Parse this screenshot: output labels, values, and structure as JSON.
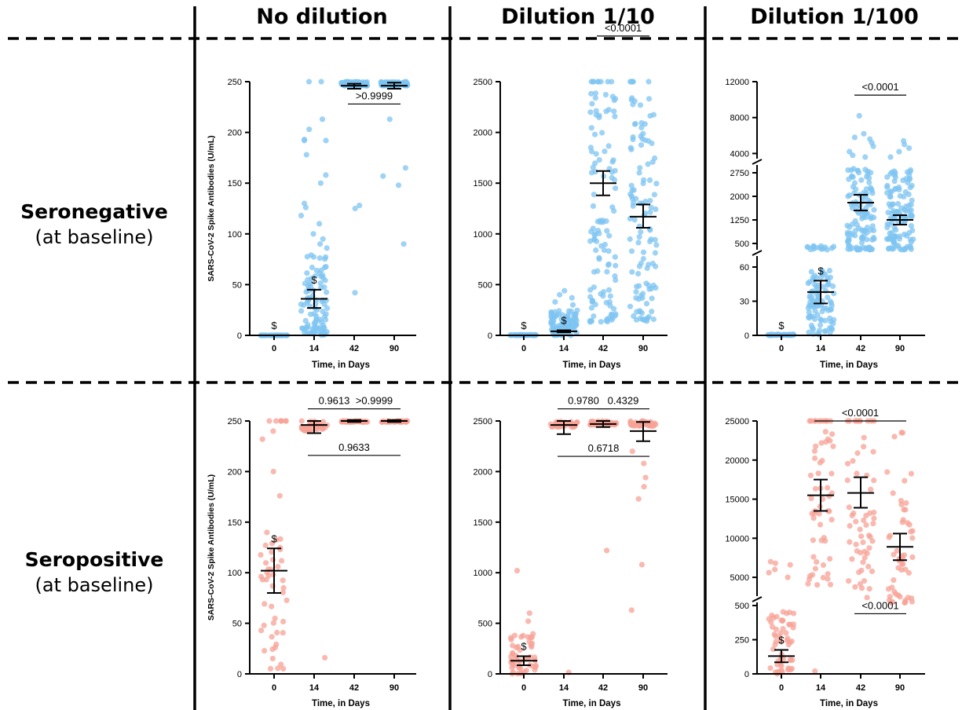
{
  "columns": [
    "No dilution",
    "Dilution 1/10",
    "Dilution 1/100"
  ],
  "rows": [
    {
      "main": "Seronegative",
      "sub": "(at baseline)"
    },
    {
      "main": "Seropositive",
      "sub": "(at baseline)"
    }
  ],
  "colors": {
    "seronegative": "#7ec4f2",
    "seropositive": "#f7a296",
    "line": "#000000"
  },
  "chart_data": [
    {
      "type": "scatter",
      "title": "No dilution",
      "group": "Seronegative",
      "xlabel": "Time, in Days",
      "ylabel": "SARS-CoV-2 Spike Antibodies (U/mL)",
      "categories": [
        "0",
        "14",
        "42",
        "90"
      ],
      "ylim": [
        0,
        250
      ],
      "yticks": [
        0,
        50,
        100,
        150,
        200,
        250
      ],
      "groups": [
        {
          "x": "0",
          "mean": 0,
          "err": [
            0,
            0
          ],
          "n": 40,
          "spread": [
            0,
            0
          ],
          "extra": [],
          "annotation": "$"
        },
        {
          "x": "14",
          "mean": 36,
          "err": [
            27,
            45
          ],
          "n": 100,
          "spread": [
            0,
            82
          ],
          "extra": [
            250,
            250,
            213,
            203,
            193,
            192,
            192,
            178,
            158,
            150,
            130,
            126,
            118,
            110,
            100,
            95,
            90,
            86
          ],
          "annotation": "$"
        },
        {
          "x": "42",
          "mean": 246,
          "err": [
            243,
            248
          ],
          "n": 95,
          "spread": [
            246,
            250
          ],
          "extra": [
            125,
            128,
            42
          ]
        },
        {
          "x": "90",
          "mean": 246,
          "err": [
            243,
            249
          ],
          "n": 95,
          "spread": [
            246,
            250
          ],
          "extra": [
            213,
            165,
            157,
            148,
            90
          ]
        }
      ],
      "comparisons": [
        {
          "from": "42",
          "to": "90",
          "y": 228,
          "label": ">0.9999"
        }
      ]
    },
    {
      "type": "scatter",
      "title": "Dilution 1/10",
      "group": "Seronegative",
      "xlabel": "Time, in Days",
      "ylabel": "",
      "categories": [
        "0",
        "14",
        "42",
        "90"
      ],
      "ylim": [
        0,
        2500
      ],
      "yticks": [
        0,
        500,
        1000,
        1500,
        2000,
        2500
      ],
      "groups": [
        {
          "x": "0",
          "mean": 0,
          "err": [
            0,
            0
          ],
          "n": 40,
          "spread": [
            0,
            5
          ],
          "extra": [],
          "annotation": "$"
        },
        {
          "x": "14",
          "mean": 40,
          "err": [
            30,
            50
          ],
          "n": 100,
          "spread": [
            0,
            250
          ],
          "extra": [
            440,
            400,
            370,
            330,
            300
          ],
          "annotation": "$"
        },
        {
          "x": "42",
          "mean": 1500,
          "err": [
            1380,
            1620
          ],
          "n": 110,
          "spread": [
            130,
            2400
          ],
          "extra": [
            2500,
            2500,
            2500,
            2500,
            2500,
            2500,
            2500,
            2500
          ]
        },
        {
          "x": "90",
          "mean": 1170,
          "err": [
            1060,
            1290
          ],
          "n": 110,
          "spread": [
            140,
            2350
          ],
          "extra": [
            2500,
            2500,
            2500,
            2500,
            2500,
            2500
          ]
        }
      ],
      "comparisons": [
        {
          "from": "42",
          "to": "90",
          "y": 2950,
          "label": "<0.0001"
        }
      ]
    },
    {
      "type": "scatter",
      "title": "Dilution 1/100",
      "group": "Seronegative",
      "xlabel": "Time, in Days",
      "ylabel": "",
      "y_axis_broken": true,
      "categories": [
        "0",
        "14",
        "42",
        "90"
      ],
      "yticks": [
        0,
        30,
        60,
        500,
        1250,
        2000,
        2750,
        4000,
        8000,
        12000
      ],
      "groups": [
        {
          "x": "0",
          "mean": 0,
          "err": [
            0,
            0
          ],
          "n": 40,
          "spread": [
            0,
            1
          ],
          "extra": [],
          "annotation": "$"
        },
        {
          "x": "14",
          "mean": 38,
          "err": [
            28,
            48
          ],
          "n": 90,
          "spread": [
            0,
            58
          ],
          "extra": [
            420,
            400,
            400,
            390,
            380,
            370,
            360,
            350,
            340,
            330,
            320,
            310,
            300,
            420,
            380
          ],
          "annotation": "$"
        },
        {
          "x": "42",
          "mean": 1800,
          "err": [
            1550,
            2050
          ],
          "n": 120,
          "spread": [
            300,
            3000
          ],
          "extra": [
            8200,
            6200,
            5800,
            5600,
            5200,
            4800,
            4200,
            3800,
            3600
          ]
        },
        {
          "x": "90",
          "mean": 1250,
          "err": [
            1100,
            1400
          ],
          "n": 120,
          "spread": [
            300,
            2900
          ],
          "extra": [
            5400,
            5000,
            4600,
            4200,
            3600
          ]
        }
      ],
      "comparisons": [
        {
          "from": "42",
          "to": "90",
          "y": 10500,
          "label": "<0.0001"
        }
      ]
    },
    {
      "type": "scatter",
      "title": "No dilution",
      "group": "Seropositive",
      "xlabel": "Time, in Days",
      "ylabel": "SARS-CoV-2 Spike Antibodies (U/mL)",
      "categories": [
        "0",
        "14",
        "42",
        "90"
      ],
      "ylim": [
        0,
        250
      ],
      "yticks": [
        0,
        50,
        100,
        150,
        200,
        250
      ],
      "groups": [
        {
          "x": "0",
          "mean": 102,
          "err": [
            80,
            124
          ],
          "n": 45,
          "spread": [
            5,
            145
          ],
          "extra": [
            250,
            250,
            250,
            250,
            250,
            250,
            250,
            240,
            232,
            200,
            176
          ],
          "annotation": "$"
        },
        {
          "x": "14",
          "mean": 246,
          "err": [
            238,
            250
          ],
          "n": 40,
          "spread": [
            240,
            250
          ],
          "extra": [
            16
          ]
        },
        {
          "x": "42",
          "mean": 250,
          "err": [
            249,
            251
          ],
          "n": 45,
          "spread": [
            249,
            250
          ],
          "extra": []
        },
        {
          "x": "90",
          "mean": 250,
          "err": [
            249,
            251
          ],
          "n": 45,
          "spread": [
            249,
            250
          ],
          "extra": []
        }
      ],
      "comparisons": [
        {
          "from": "14",
          "to": "42",
          "y": 262,
          "label": "0.9613"
        },
        {
          "from": "42",
          "to": "90",
          "y": 262,
          "label": ">0.9999"
        },
        {
          "from": "14",
          "to": "90",
          "y": 216,
          "label": "0.9633"
        }
      ]
    },
    {
      "type": "scatter",
      "title": "Dilution 1/10",
      "group": "Seropositive",
      "xlabel": "Time, in Days",
      "ylabel": "",
      "categories": [
        "0",
        "14",
        "42",
        "90"
      ],
      "ylim": [
        0,
        2500
      ],
      "yticks": [
        0,
        500,
        1000,
        1500,
        2000,
        2500
      ],
      "groups": [
        {
          "x": "0",
          "mean": 130,
          "err": [
            85,
            175
          ],
          "n": 50,
          "spread": [
            0,
            400
          ],
          "extra": [
            1020,
            600,
            520
          ],
          "annotation": "$"
        },
        {
          "x": "14",
          "mean": 2460,
          "err": [
            2370,
            2500
          ],
          "n": 40,
          "spread": [
            2440,
            2500
          ],
          "extra": [
            15
          ]
        },
        {
          "x": "42",
          "mean": 2470,
          "err": [
            2440,
            2500
          ],
          "n": 45,
          "spread": [
            2460,
            2500
          ],
          "extra": [
            1220
          ]
        },
        {
          "x": "90",
          "mean": 2400,
          "err": [
            2300,
            2490
          ],
          "n": 40,
          "spread": [
            2450,
            2500
          ],
          "extra": [
            2200,
            2080,
            1940,
            1850,
            1730,
            1080,
            630
          ]
        }
      ],
      "comparisons": [
        {
          "from": "14",
          "to": "42",
          "y": 2620,
          "label": "0.9780"
        },
        {
          "from": "42",
          "to": "90",
          "y": 2620,
          "label": "0.4329"
        },
        {
          "from": "14",
          "to": "90",
          "y": 2150,
          "label": "0.6718"
        }
      ]
    },
    {
      "type": "scatter",
      "title": "Dilution 1/100",
      "group": "Seropositive",
      "xlabel": "Time, in Days",
      "ylabel": "",
      "y_axis_broken": true,
      "categories": [
        "0",
        "14",
        "42",
        "90"
      ],
      "yticks": [
        0,
        250,
        500,
        5000,
        10000,
        15000,
        20000,
        25000
      ],
      "groups": [
        {
          "x": "0",
          "mean": 130,
          "err": [
            85,
            175
          ],
          "n": 55,
          "spread": [
            0,
            460
          ],
          "extra": [
            7000,
            6800,
            6600,
            6000,
            5600,
            5000
          ],
          "annotation": "$"
        },
        {
          "x": "14",
          "mean": 15500,
          "err": [
            13500,
            17500
          ],
          "n": 50,
          "spread": [
            4000,
            24000
          ],
          "extra": [
            25000,
            25000,
            25000,
            25000,
            25000,
            25000,
            25000,
            25000,
            25000,
            25000,
            20
          ]
        },
        {
          "x": "42",
          "mean": 15800,
          "err": [
            13900,
            17800
          ],
          "n": 50,
          "spread": [
            2000,
            24000
          ],
          "extra": [
            25000,
            25000,
            25000,
            25000,
            25000,
            25000,
            25000,
            25000,
            25000,
            25000
          ]
        },
        {
          "x": "90",
          "mean": 8900,
          "err": [
            7200,
            10600
          ],
          "n": 50,
          "spread": [
            1000,
            18500
          ],
          "extra": [
            23500,
            23500,
            23000
          ]
        }
      ],
      "comparisons": [
        {
          "from": "14",
          "to": "90",
          "y": 26500,
          "label": "<0.0001"
        },
        {
          "from": "42",
          "to": "90",
          "y": 440,
          "label": "<0.0001"
        }
      ]
    }
  ]
}
